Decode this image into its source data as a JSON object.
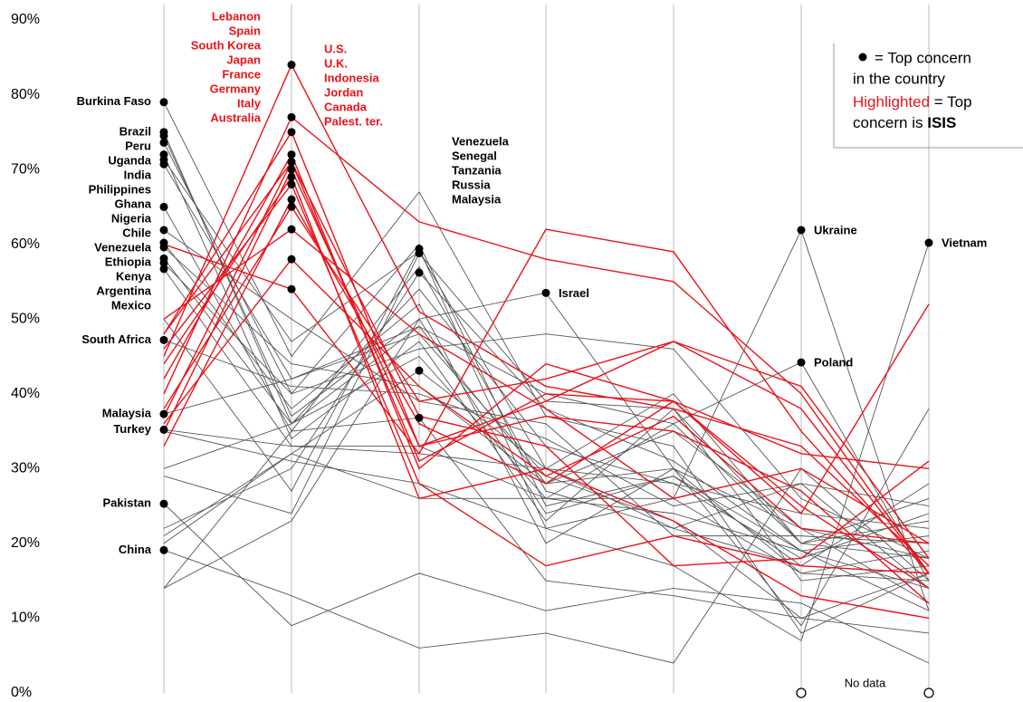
{
  "chart_data": {
    "type": "parallel",
    "ylim": [
      0,
      90
    ],
    "yticks": [
      {
        "value": 0,
        "label": "0%"
      },
      {
        "value": 10,
        "label": "10%"
      },
      {
        "value": 20,
        "label": "20%"
      },
      {
        "value": 30,
        "label": "30%"
      },
      {
        "value": 40,
        "label": "40%"
      },
      {
        "value": 50,
        "label": "50%"
      },
      {
        "value": 60,
        "label": "60%"
      },
      {
        "value": 70,
        "label": "70%"
      },
      {
        "value": 80,
        "label": "80%"
      },
      {
        "value": 90,
        "label": "90%"
      }
    ],
    "grid": true,
    "highlight_color": "#e8141b",
    "base_color": "#555555",
    "series": [
      {
        "highlight": true,
        "top": 1,
        "values": [
          45,
          84,
          51,
          41,
          38,
          33,
          17
        ]
      },
      {
        "highlight": true,
        "top": 1,
        "values": [
          40,
          77,
          63,
          58,
          55,
          40,
          16
        ]
      },
      {
        "highlight": true,
        "top": 1,
        "values": [
          48,
          75,
          33,
          39,
          47,
          41,
          18
        ]
      },
      {
        "highlight": true,
        "top": 1,
        "values": [
          42,
          72,
          30,
          44,
          39,
          32,
          30
        ]
      },
      {
        "highlight": true,
        "top": 1,
        "values": [
          37,
          71,
          31,
          40,
          39,
          25,
          14
        ]
      },
      {
        "highlight": true,
        "top": 1,
        "values": [
          35,
          70,
          33,
          37,
          35,
          27,
          12
        ]
      },
      {
        "highlight": true,
        "top": 1,
        "values": [
          44,
          69,
          26,
          30,
          23,
          13,
          10
        ]
      },
      {
        "highlight": true,
        "top": 1,
        "values": [
          46,
          68,
          28,
          17,
          21,
          17,
          16
        ]
      },
      {
        "highlight": true,
        "top": 1,
        "values": [
          33,
          66,
          36,
          28,
          39,
          24,
          52
        ]
      },
      {
        "highlight": true,
        "top": 1,
        "values": [
          38,
          65,
          39,
          42,
          47,
          38,
          16
        ]
      },
      {
        "highlight": true,
        "top": 1,
        "values": [
          50,
          62,
          48,
          38,
          26,
          30,
          20
        ]
      },
      {
        "highlight": true,
        "top": 1,
        "values": [
          36,
          58,
          41,
          29,
          37,
          22,
          20
        ]
      },
      {
        "highlight": true,
        "top": 1,
        "values": [
          60,
          54,
          32,
          62,
          59,
          35,
          16
        ]
      },
      {
        "highlight": true,
        "top": 1,
        "values": [
          48,
          71,
          37,
          33,
          17,
          18,
          31
        ]
      },
      {
        "name": "Burkina Faso",
        "top": 0,
        "values": [
          79,
          45,
          67,
          37,
          33,
          8,
          16
        ]
      },
      {
        "name": "Brazil",
        "top": 0,
        "values": [
          75,
          36,
          54,
          33,
          28,
          18,
          24
        ]
      },
      {
        "name": "Peru",
        "top": 0,
        "values": [
          74.5,
          37,
          50,
          24,
          29,
          19,
          14
        ]
      },
      {
        "name": "Uganda",
        "top": 0,
        "values": [
          73.6,
          40,
          60,
          25,
          29,
          17,
          16
        ]
      },
      {
        "name": "India",
        "top": 0,
        "values": [
          72,
          34,
          47,
          23,
          38,
          15,
          17
        ]
      },
      {
        "name": "Philippines",
        "top": 0,
        "values": [
          71.3,
          47,
          59,
          30,
          40,
          20,
          26
        ]
      },
      {
        "name": "Ghana",
        "top": 0,
        "values": [
          70.7,
          42,
          48,
          29,
          23,
          10,
          16
        ]
      },
      {
        "name": "Nigeria",
        "top": 0,
        "values": [
          65,
          35,
          57,
          27,
          22,
          17,
          28
        ]
      },
      {
        "name": "Chile",
        "top": 0,
        "values": [
          61.9,
          50,
          39,
          36,
          21,
          21,
          20
        ]
      },
      {
        "name": "Venezuela",
        "top": 0,
        "values": [
          60.2,
          38,
          52,
          20,
          30,
          16,
          15
        ]
      },
      {
        "name": "Ethiopia",
        "top": 0,
        "values": [
          59.6,
          44,
          41,
          28,
          35,
          22,
          18
        ]
      },
      {
        "name": "Kenya",
        "top": 0,
        "values": [
          58.1,
          36,
          45,
          26,
          36,
          20,
          23
        ]
      },
      {
        "name": "Argentina",
        "top": 0,
        "values": [
          57.5,
          40,
          46,
          48,
          46,
          26,
          18
        ]
      },
      {
        "name": "Mexico",
        "top": 0,
        "values": [
          56.7,
          33,
          32,
          30,
          22,
          28,
          14
        ]
      },
      {
        "name": "South Africa",
        "top": 0,
        "values": [
          47.2,
          41,
          40,
          34,
          25,
          28,
          25
        ]
      },
      {
        "name": "Malaysia",
        "top": 0,
        "values": [
          37.3,
          42,
          49,
          28,
          30,
          9,
          38
        ]
      },
      {
        "name": "Turkey",
        "top": 0,
        "values": [
          35.2,
          33,
          33,
          26,
          24,
          19,
          11
        ]
      },
      {
        "name": "Pakistan",
        "top": 0,
        "values": [
          25.3,
          9,
          16,
          11,
          14,
          12,
          4
        ]
      },
      {
        "name": "China",
        "top": 0,
        "values": [
          19.1,
          13,
          6,
          8,
          4,
          30,
          15
        ]
      },
      {
        "top": 2,
        "values": [
          50,
          27,
          59.4,
          22,
          26,
          16,
          19
        ]
      },
      {
        "top": 2,
        "values": [
          29,
          24,
          58.8,
          39,
          38,
          20,
          18
        ]
      },
      {
        "top": 2,
        "values": [
          22,
          30,
          56.2,
          38,
          31,
          19,
          21
        ]
      },
      {
        "top": 2,
        "values": [
          20,
          32,
          43.1,
          30,
          28,
          24,
          22
        ]
      },
      {
        "top": 2,
        "values": [
          14,
          35,
          36.8,
          15,
          13,
          10,
          8
        ]
      },
      {
        "name": "Israel",
        "top": 3,
        "values": [
          14,
          23,
          50,
          53.5,
          30,
          22,
          12
        ]
      },
      {
        "name": "Ukraine",
        "top": 5,
        "values": [
          21,
          32,
          26,
          26,
          26,
          61.9,
          11
        ]
      },
      {
        "name": "Poland",
        "top": 5,
        "values": [
          30,
          36,
          49,
          40,
          36,
          44.2,
          15
        ]
      },
      {
        "name": "Vietnam",
        "top": 6,
        "values": [
          35,
          31,
          28,
          22,
          17,
          7,
          60.2
        ]
      }
    ],
    "label_blocks": [
      {
        "axis": 1,
        "side": "left",
        "highlight": true,
        "lines": [
          "Lebanon",
          "Spain",
          "South Korea",
          "Japan",
          "France",
          "Germany",
          "Italy",
          "Australia"
        ]
      },
      {
        "axis": 1,
        "side": "right",
        "highlight": true,
        "lines": [
          "U.S.",
          "U.K.",
          "Indonesia",
          "Jordan",
          "Canada",
          "Palest. ter."
        ]
      },
      {
        "axis": 2,
        "side": "right",
        "highlight": false,
        "lines": [
          "Venezuela",
          "Senegal",
          "Tanzania",
          "Russia",
          "Malaysia"
        ]
      }
    ],
    "no_data": {
      "text": "No data",
      "axes": [
        5,
        6
      ]
    },
    "legend": {
      "line1": "= Top concern",
      "line2": "in the country",
      "highlighted": "Highlighted",
      "line3": "= Top",
      "line4": "concern is",
      "isis": "ISIS"
    }
  }
}
